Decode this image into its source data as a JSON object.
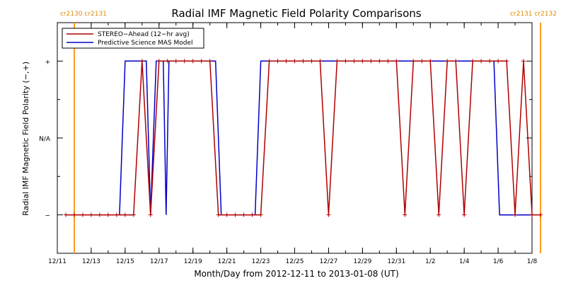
{
  "chart_data": {
    "type": "line",
    "title": "Radial IMF Magnetic Field Polarity Comparisons",
    "xlabel": "Month/Day from 2012-12-11 to 2013-01-08 (UT)",
    "ylabel": "Radial IMF Magnetic Field Polarity (−,+)",
    "xlim": [
      "2012-12-11",
      "2013-01-08"
    ],
    "y_categories": [
      "−",
      "N/A",
      "+"
    ],
    "ylim": [
      -1.5,
      1.5
    ],
    "x_ticks": [
      "12/11",
      "12/13",
      "12/15",
      "12/17",
      "12/19",
      "12/21",
      "12/23",
      "12/25",
      "12/27",
      "12/29",
      "12/31",
      "1/2",
      "1/4",
      "1/6",
      "1/8"
    ],
    "y_ticks": [
      "+",
      "N/A",
      "−"
    ],
    "carrington_markers": [
      {
        "date": "2012-12-12 00:00",
        "label": "cr2130 cr2131",
        "side": "left"
      },
      {
        "date": "2013-01-08 12:00",
        "label": "cr2131 cr2132",
        "side": "right"
      }
    ],
    "legend": {
      "position": "top-left",
      "entries": [
        "STEREO−Ahead (12−hr avg)",
        "Predictive Science MAS Model"
      ]
    },
    "series": [
      {
        "name": "STEREO−Ahead (12−hr avg)",
        "color": "#b00000",
        "marker": "+",
        "points": [
          [
            "2012-12-11 12:00",
            -1
          ],
          [
            "2012-12-12 00:00",
            -1
          ],
          [
            "2012-12-12 12:00",
            -1
          ],
          [
            "2012-12-13 00:00",
            -1
          ],
          [
            "2012-12-13 12:00",
            -1
          ],
          [
            "2012-12-14 00:00",
            -1
          ],
          [
            "2012-12-14 12:00",
            -1
          ],
          [
            "2012-12-15 00:00",
            -1
          ],
          [
            "2012-12-15 12:00",
            -1
          ],
          [
            "2012-12-16 00:00",
            1
          ],
          [
            "2012-12-16 12:00",
            -1
          ],
          [
            "2012-12-17 00:00",
            1
          ],
          [
            "2012-12-17 12:00",
            1
          ],
          [
            "2012-12-18 00:00",
            1
          ],
          [
            "2012-12-18 12:00",
            1
          ],
          [
            "2012-12-19 00:00",
            1
          ],
          [
            "2012-12-19 12:00",
            1
          ],
          [
            "2012-12-20 00:00",
            1
          ],
          [
            "2012-12-20 12:00",
            -1
          ],
          [
            "2012-12-21 00:00",
            -1
          ],
          [
            "2012-12-21 12:00",
            -1
          ],
          [
            "2012-12-22 00:00",
            -1
          ],
          [
            "2012-12-22 12:00",
            -1
          ],
          [
            "2012-12-23 00:00",
            -1
          ],
          [
            "2012-12-23 12:00",
            1
          ],
          [
            "2012-12-24 00:00",
            1
          ],
          [
            "2012-12-24 12:00",
            1
          ],
          [
            "2012-12-25 00:00",
            1
          ],
          [
            "2012-12-25 12:00",
            1
          ],
          [
            "2012-12-26 00:00",
            1
          ],
          [
            "2012-12-26 12:00",
            1
          ],
          [
            "2012-12-27 00:00",
            -1
          ],
          [
            "2012-12-27 12:00",
            1
          ],
          [
            "2012-12-28 00:00",
            1
          ],
          [
            "2012-12-28 12:00",
            1
          ],
          [
            "2012-12-29 00:00",
            1
          ],
          [
            "2012-12-29 12:00",
            1
          ],
          [
            "2012-12-30 00:00",
            1
          ],
          [
            "2012-12-30 12:00",
            1
          ],
          [
            "2012-12-31 00:00",
            1
          ],
          [
            "2012-12-31 12:00",
            -1
          ],
          [
            "2013-01-01 00:00",
            1
          ],
          [
            "2013-01-01 12:00",
            1
          ],
          [
            "2013-01-02 00:00",
            1
          ],
          [
            "2013-01-02 12:00",
            -1
          ],
          [
            "2013-01-03 00:00",
            1
          ],
          [
            "2013-01-03 12:00",
            1
          ],
          [
            "2013-01-04 00:00",
            -1
          ],
          [
            "2013-01-04 12:00",
            1
          ],
          [
            "2013-01-05 00:00",
            1
          ],
          [
            "2013-01-05 12:00",
            1
          ],
          [
            "2013-01-06 00:00",
            1
          ],
          [
            "2013-01-06 12:00",
            1
          ],
          [
            "2013-01-07 00:00",
            -1
          ],
          [
            "2013-01-07 12:00",
            1
          ],
          [
            "2013-01-08 00:00",
            -1
          ],
          [
            "2013-01-08 12:00",
            -1
          ]
        ]
      },
      {
        "name": "Predictive Science MAS Model",
        "color": "#0000c8",
        "marker": "none",
        "points": [
          [
            "2012-12-12 00:00",
            -1
          ],
          [
            "2012-12-14 16:00",
            -1
          ],
          [
            "2012-12-15 00:00",
            1
          ],
          [
            "2012-12-16 06:00",
            1
          ],
          [
            "2012-12-16 12:00",
            -1
          ],
          [
            "2012-12-16 20:00",
            1
          ],
          [
            "2012-12-17 06:00",
            1
          ],
          [
            "2012-12-17 10:00",
            -1
          ],
          [
            "2012-12-17 14:00",
            1
          ],
          [
            "2012-12-20 08:00",
            1
          ],
          [
            "2012-12-20 16:00",
            -1
          ],
          [
            "2012-12-22 16:00",
            -1
          ],
          [
            "2012-12-23 00:00",
            1
          ],
          [
            "2013-01-05 18:00",
            1
          ],
          [
            "2013-01-06 02:00",
            -1
          ],
          [
            "2013-01-08 12:00",
            -1
          ]
        ]
      }
    ]
  }
}
